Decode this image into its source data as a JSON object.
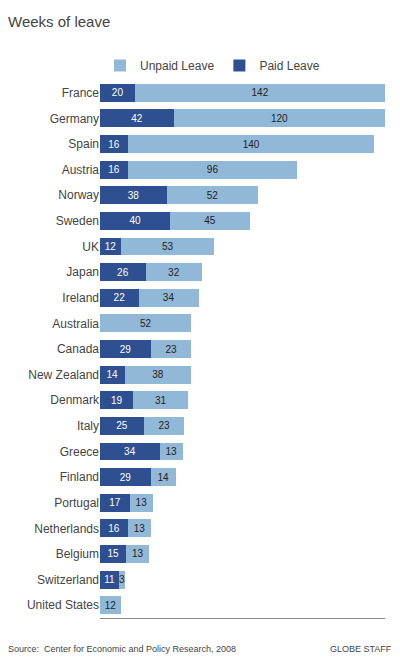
{
  "chart_data": {
    "type": "bar",
    "orientation": "horizontal",
    "stacked": true,
    "title": "Weeks of leave",
    "categories": [
      "France",
      "Germany",
      "Spain",
      "Austria",
      "Norway",
      "Sweden",
      "UK",
      "Japan",
      "Ireland",
      "Australia",
      "Canada",
      "New Zealand",
      "Denmark",
      "Italy",
      "Greece",
      "Finland",
      "Portugal",
      "Netherlands",
      "Belgium",
      "Switzerland",
      "United States"
    ],
    "series": [
      {
        "name": "Paid Leave",
        "color": "#2E5090",
        "values": [
          20,
          42,
          16,
          16,
          38,
          40,
          12,
          26,
          22,
          0,
          29,
          14,
          19,
          25,
          34,
          29,
          17,
          16,
          15,
          11,
          0
        ]
      },
      {
        "name": "Unpaid Leave",
        "color": "#92B8D8",
        "values": [
          142,
          120,
          140,
          96,
          52,
          45,
          53,
          32,
          34,
          52,
          23,
          38,
          31,
          23,
          13,
          14,
          13,
          13,
          13,
          3,
          12
        ]
      }
    ],
    "xlim": [
      0,
      162
    ],
    "data_labels": true,
    "tick_labels": "y",
    "grid": false,
    "legend": "top",
    "annotations": [
      "Source:  Center for Economic and Policy Research, 2008",
      "GLOBE STAFF"
    ]
  }
}
